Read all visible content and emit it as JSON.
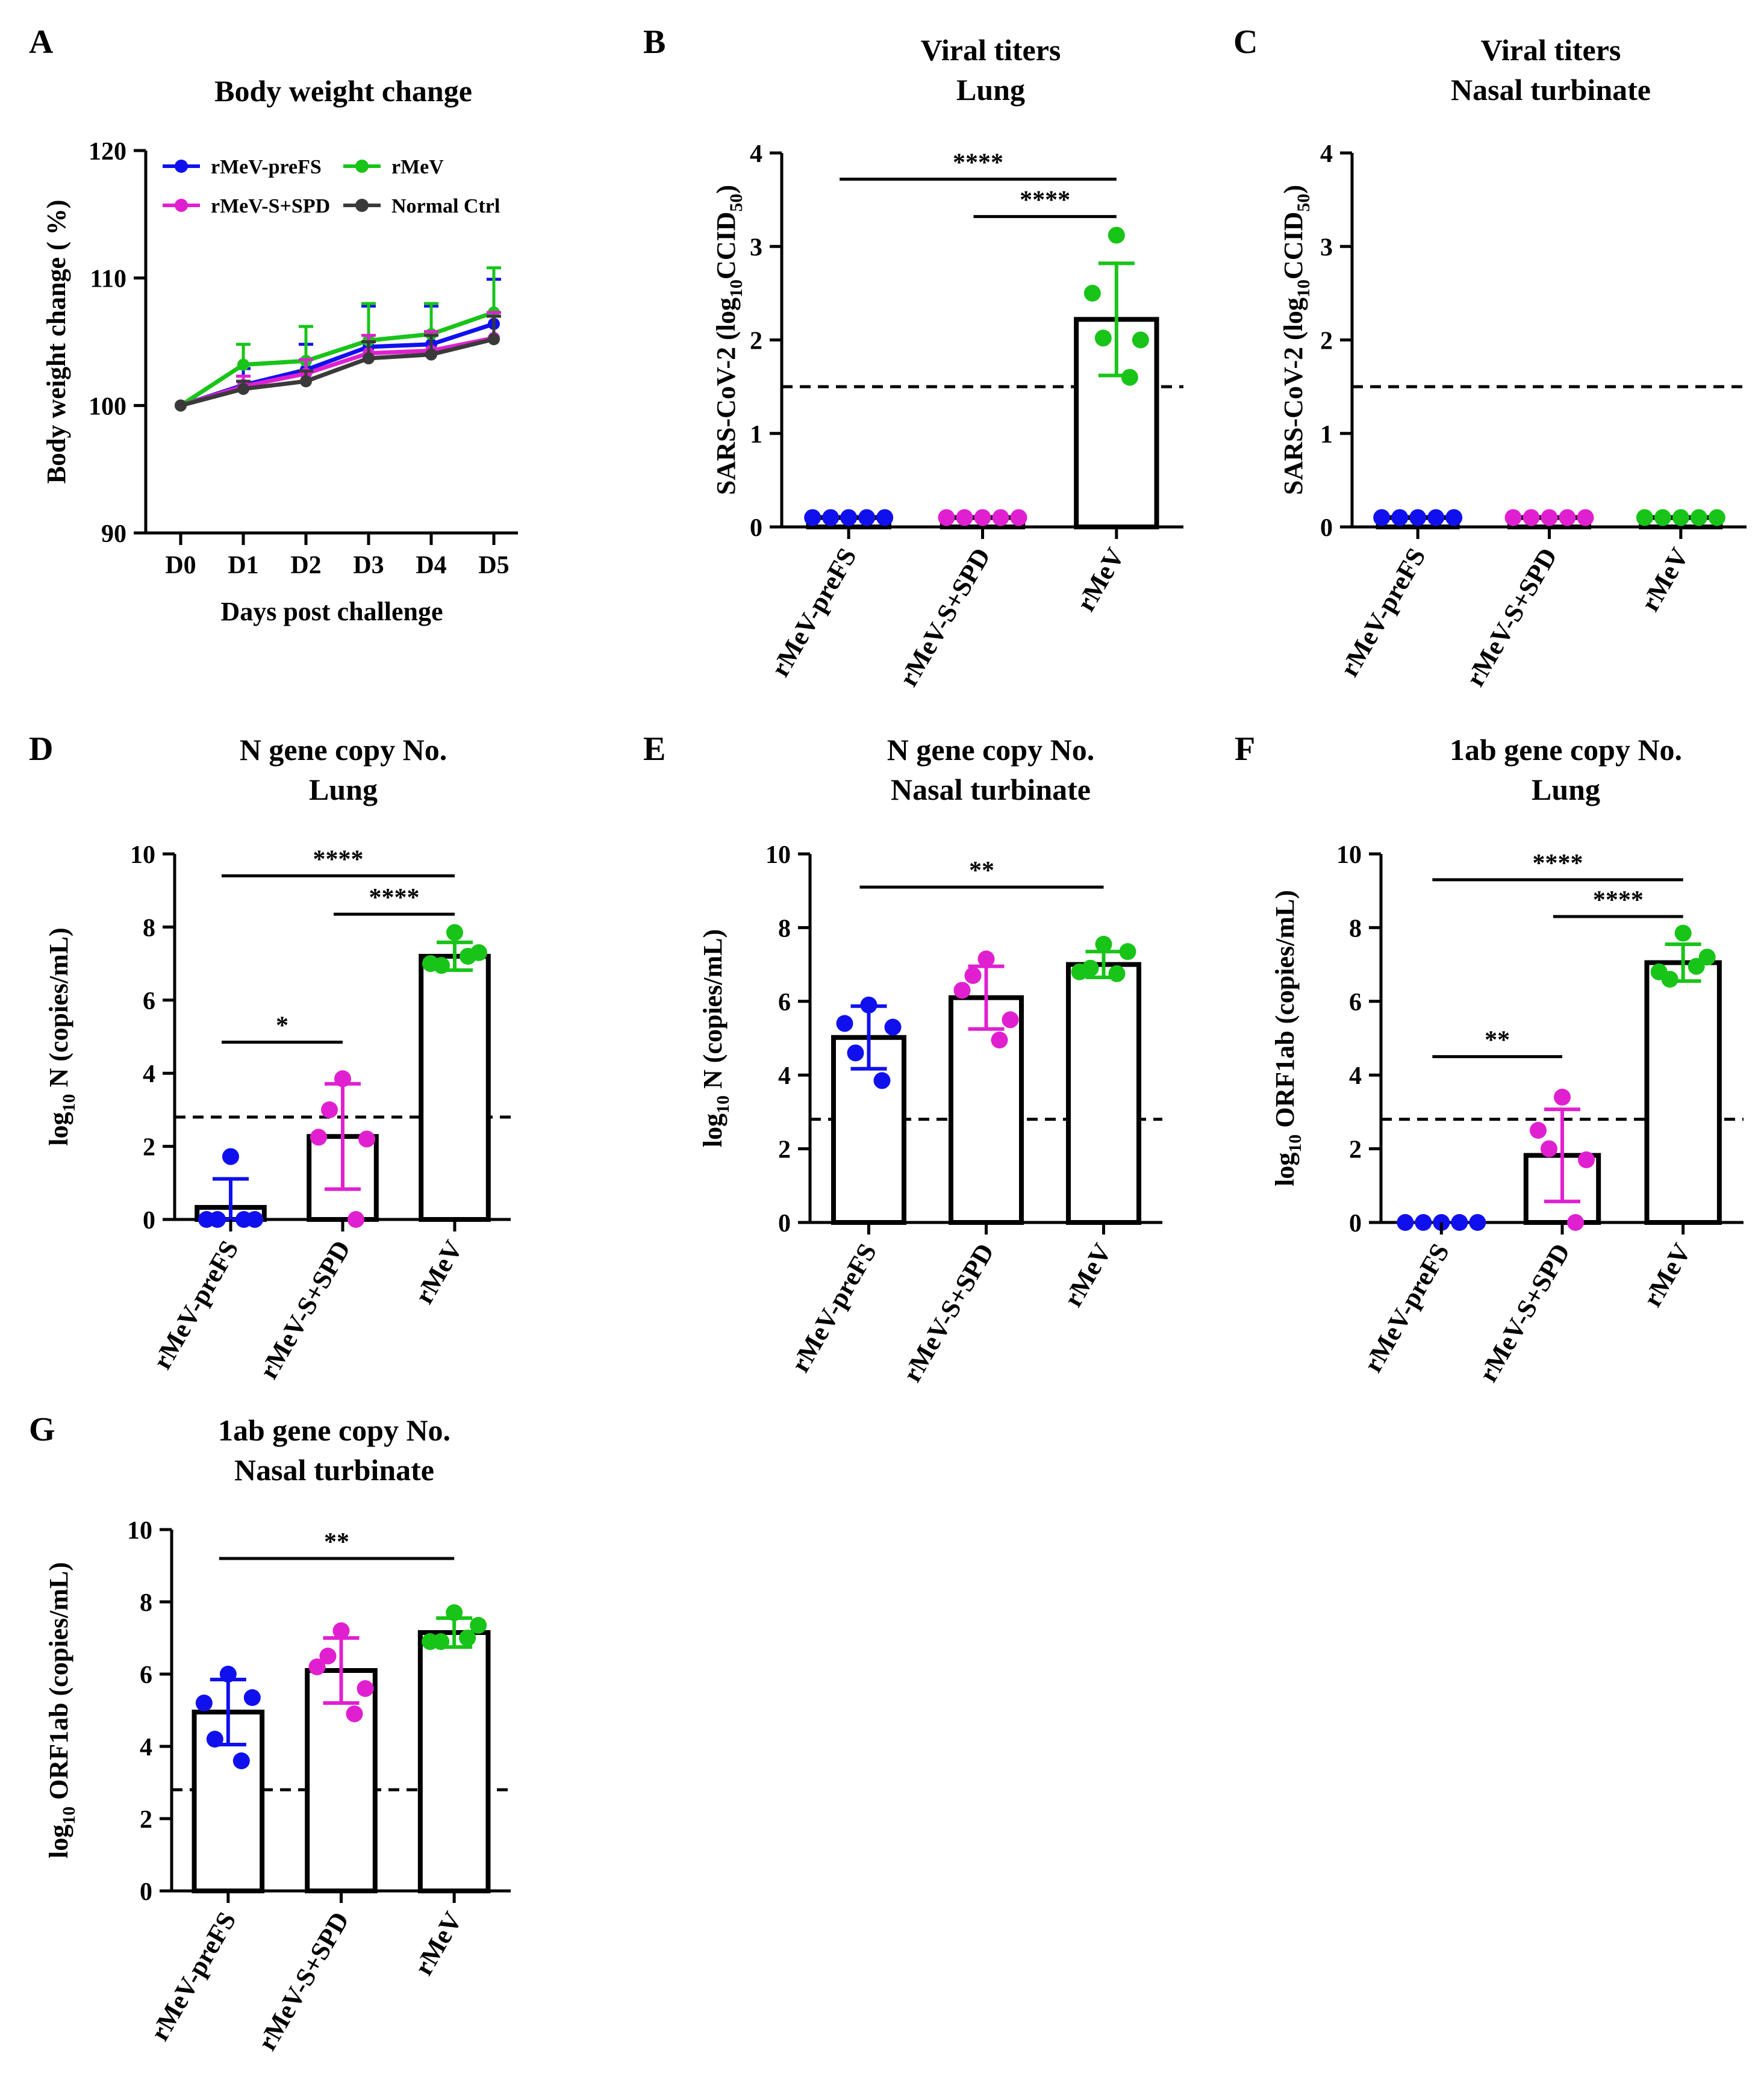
{
  "colors": {
    "rMeV-preFS": "#1010ee",
    "rMeV-S+SPD": "#e020d0",
    "rMeV": "#18c418",
    "Normal Ctrl": "#3a3a3a"
  },
  "chart_data": [
    {
      "id": "A",
      "type": "line",
      "panel_label": "A",
      "title": [
        "Body weight change"
      ],
      "xlabel": "Days post challenge",
      "ylabel": "Body weight change ( %)",
      "categories": [
        "D0",
        "D1",
        "D2",
        "D3",
        "D4",
        "D5"
      ],
      "ylim": [
        90,
        120
      ],
      "yticks": [
        90,
        100,
        110,
        120
      ],
      "legend": [
        "rMeV-preFS",
        "rMeV",
        "rMeV-S+SPD",
        "Normal Ctrl"
      ],
      "series": [
        {
          "name": "rMeV-preFS",
          "values": [
            100,
            101.6,
            102.8,
            104.6,
            104.8,
            106.4
          ],
          "sd": [
            0,
            1.3,
            2.0,
            3.2,
            3.0,
            3.5
          ]
        },
        {
          "name": "rMeV",
          "values": [
            100,
            103.2,
            103.5,
            105.1,
            105.6,
            107.3
          ],
          "sd": [
            0,
            1.6,
            2.7,
            2.9,
            2.4,
            3.5
          ]
        },
        {
          "name": "rMeV-S+SPD",
          "values": [
            100,
            101.5,
            102.5,
            104.1,
            104.3,
            105.3
          ],
          "sd": [
            0,
            0.8,
            1.1,
            1.4,
            1.5,
            2.0
          ]
        },
        {
          "name": "Normal Ctrl",
          "values": [
            100,
            101.3,
            101.9,
            103.7,
            104.0,
            105.2
          ],
          "sd": [
            0,
            0.6,
            0.8,
            1.3,
            1.5,
            1.8
          ]
        }
      ]
    },
    {
      "id": "B",
      "type": "bar",
      "panel_label": "B",
      "title": [
        "Viral titers",
        "Lung"
      ],
      "ylabel_parts": [
        "SARS-CoV-2 (log",
        "10",
        "CCID",
        "50",
        ")"
      ],
      "categories": [
        "rMeV-preFS",
        "rMeV-S+SPD",
        "rMeV"
      ],
      "ylim": [
        0,
        4
      ],
      "yticks": [
        0,
        1,
        2,
        3,
        4
      ],
      "dashed_line": 1.5,
      "series": [
        {
          "name": "rMeV-preFS",
          "mean": 0.1,
          "sd": 0,
          "points": [
            0.1,
            0.1,
            0.1,
            0.1,
            0.1
          ]
        },
        {
          "name": "rMeV-S+SPD",
          "mean": 0.1,
          "sd": 0,
          "points": [
            0.1,
            0.1,
            0.1,
            0.1,
            0.1
          ]
        },
        {
          "name": "rMeV",
          "mean": 2.22,
          "sd": 0.6,
          "points": [
            3.12,
            2.5,
            2.0,
            2.02,
            1.6
          ]
        }
      ],
      "significance": [
        {
          "from": 0,
          "to": 2,
          "y": 3.72,
          "label": "****"
        },
        {
          "from": 1,
          "to": 2,
          "y": 3.32,
          "label": "****"
        }
      ]
    },
    {
      "id": "C",
      "type": "bar",
      "panel_label": "C",
      "title": [
        "Viral titers",
        "Nasal turbinate"
      ],
      "ylabel_parts": [
        "SARS-CoV-2 (log",
        "10",
        "CCID",
        "50",
        ")"
      ],
      "categories": [
        "rMeV-preFS",
        "rMeV-S+SPD",
        "rMeV"
      ],
      "ylim": [
        0,
        4
      ],
      "yticks": [
        0,
        1,
        2,
        3,
        4
      ],
      "dashed_line": 1.5,
      "series": [
        {
          "name": "rMeV-preFS",
          "mean": 0.1,
          "sd": 0,
          "points": [
            0.1,
            0.1,
            0.1,
            0.1,
            0.1
          ]
        },
        {
          "name": "rMeV-S+SPD",
          "mean": 0.1,
          "sd": 0,
          "points": [
            0.1,
            0.1,
            0.1,
            0.1,
            0.1
          ]
        },
        {
          "name": "rMeV",
          "mean": 0.1,
          "sd": 0,
          "points": [
            0.1,
            0.1,
            0.1,
            0.1,
            0.1
          ]
        }
      ],
      "significance": []
    },
    {
      "id": "D",
      "type": "bar",
      "panel_label": "D",
      "title": [
        "N gene copy No.",
        "Lung"
      ],
      "ylabel_parts": [
        "log",
        "10",
        " N (copies/mL)"
      ],
      "categories": [
        "rMeV-preFS",
        "rMeV-S+SPD",
        "rMeV"
      ],
      "ylim": [
        0,
        10
      ],
      "yticks": [
        0,
        2,
        4,
        6,
        8,
        10
      ],
      "dashed_line": 2.8,
      "series": [
        {
          "name": "rMeV-preFS",
          "mean": 0.33,
          "sd": 0.78,
          "points": [
            1.72,
            0,
            0,
            0,
            0
          ]
        },
        {
          "name": "rMeV-S+SPD",
          "mean": 2.27,
          "sd": 1.44,
          "points": [
            3.85,
            2.25,
            2.2,
            3.0,
            0
          ]
        },
        {
          "name": "rMeV",
          "mean": 7.2,
          "sd": 0.38,
          "points": [
            7.85,
            7.0,
            7.3,
            6.95,
            7.2
          ]
        }
      ],
      "significance": [
        {
          "from": 0,
          "to": 2,
          "y": 9.4,
          "label": "****"
        },
        {
          "from": 1,
          "to": 2,
          "y": 8.35,
          "label": "****"
        },
        {
          "from": 0,
          "to": 1,
          "y": 4.85,
          "label": "*"
        }
      ]
    },
    {
      "id": "E",
      "type": "bar",
      "panel_label": "E",
      "title": [
        "N gene copy No.",
        "Nasal turbinate"
      ],
      "ylabel_parts": [
        "log",
        "10",
        " N (copies/mL)"
      ],
      "categories": [
        "rMeV-preFS",
        "rMeV-S+SPD",
        "rMeV"
      ],
      "ylim": [
        0,
        10
      ],
      "yticks": [
        0,
        2,
        4,
        6,
        8,
        10
      ],
      "dashed_line": 2.8,
      "series": [
        {
          "name": "rMeV-preFS",
          "mean": 5.02,
          "sd": 0.85,
          "points": [
            5.9,
            5.4,
            5.3,
            4.6,
            3.85
          ]
        },
        {
          "name": "rMeV-S+SPD",
          "mean": 6.1,
          "sd": 0.85,
          "points": [
            7.15,
            6.3,
            5.5,
            6.7,
            4.95
          ]
        },
        {
          "name": "rMeV",
          "mean": 7.0,
          "sd": 0.35,
          "points": [
            7.55,
            6.8,
            7.35,
            6.9,
            6.75
          ]
        }
      ],
      "significance": [
        {
          "from": 0,
          "to": 2,
          "y": 9.1,
          "label": "**"
        }
      ]
    },
    {
      "id": "F",
      "type": "bar",
      "panel_label": "F",
      "title": [
        "1ab gene copy No.",
        "Lung"
      ],
      "ylabel_parts": [
        "log",
        "10",
        " ORF1ab (copies/mL)"
      ],
      "categories": [
        "rMeV-preFS",
        "rMeV-S+SPD",
        "rMeV"
      ],
      "ylim": [
        0,
        10
      ],
      "yticks": [
        0,
        2,
        4,
        6,
        8,
        10
      ],
      "dashed_line": 2.8,
      "series": [
        {
          "name": "rMeV-preFS",
          "mean": 0,
          "sd": 0,
          "points": [
            0,
            0,
            0,
            0,
            0
          ]
        },
        {
          "name": "rMeV-S+SPD",
          "mean": 1.82,
          "sd": 1.25,
          "points": [
            3.4,
            2.5,
            1.7,
            2.0,
            0
          ]
        },
        {
          "name": "rMeV",
          "mean": 7.05,
          "sd": 0.5,
          "points": [
            7.85,
            6.8,
            7.2,
            6.6,
            6.95
          ]
        }
      ],
      "significance": [
        {
          "from": 0,
          "to": 2,
          "y": 9.3,
          "label": "****"
        },
        {
          "from": 1,
          "to": 2,
          "y": 8.3,
          "label": "****"
        },
        {
          "from": 0,
          "to": 1,
          "y": 4.5,
          "label": "**"
        }
      ]
    },
    {
      "id": "G",
      "type": "bar",
      "panel_label": "G",
      "title": [
        "1ab gene copy No.",
        "Nasal turbinate"
      ],
      "ylabel_parts": [
        "log",
        "10",
        " ORF1ab (copies/mL)"
      ],
      "categories": [
        "rMeV-preFS",
        "rMeV-S+SPD",
        "rMeV"
      ],
      "ylim": [
        0,
        10
      ],
      "yticks": [
        0,
        2,
        4,
        6,
        8,
        10
      ],
      "dashed_line": 2.8,
      "series": [
        {
          "name": "rMeV-preFS",
          "mean": 4.95,
          "sd": 0.9,
          "points": [
            6.0,
            5.2,
            5.35,
            4.2,
            3.6
          ]
        },
        {
          "name": "rMeV-S+SPD",
          "mean": 6.1,
          "sd": 0.9,
          "points": [
            7.2,
            6.2,
            5.6,
            6.5,
            4.9
          ]
        },
        {
          "name": "rMeV",
          "mean": 7.15,
          "sd": 0.4,
          "points": [
            7.7,
            6.9,
            7.35,
            6.9,
            7.0
          ]
        }
      ],
      "significance": [
        {
          "from": 0,
          "to": 2,
          "y": 9.2,
          "label": "**"
        }
      ]
    }
  ]
}
